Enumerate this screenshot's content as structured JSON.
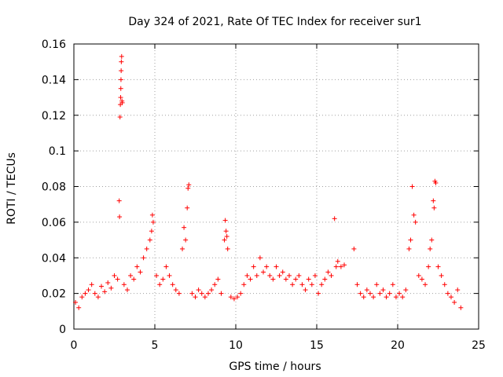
{
  "chart_data": {
    "type": "scatter",
    "title": "Day 324 of 2021, Rate Of TEC Index for receiver sur1",
    "xlabel": "GPS time / hours",
    "ylabel": "ROTI / TECUs",
    "xlim": [
      0,
      25
    ],
    "ylim": [
      0,
      0.16
    ],
    "xticks": [
      "0",
      "5",
      "10",
      "15",
      "20",
      "25"
    ],
    "yticks": [
      "0",
      "0.02",
      "0.04",
      "0.06",
      "0.08",
      "0.1",
      "0.12",
      "0.14",
      "0.16"
    ],
    "grid": true,
    "marker": "+",
    "marker_color": "#ff0000",
    "series": [
      {
        "values_note_free": true,
        "x": [
          0.1,
          0.3,
          0.5,
          0.7,
          0.9,
          1.1,
          1.3,
          1.5,
          1.7,
          1.9,
          2.1,
          2.3,
          2.5,
          2.7,
          2.85,
          2.87,
          2.89,
          2.9,
          2.91,
          2.92,
          2.93,
          2.95,
          2.97,
          2.99,
          2.8,
          2.82,
          3.1,
          3.3,
          3.5,
          3.7,
          3.9,
          4.1,
          4.3,
          4.5,
          4.7,
          4.8,
          4.85,
          4.9,
          5.1,
          5.3,
          5.5,
          5.7,
          5.9,
          6.1,
          6.3,
          6.5,
          6.7,
          6.8,
          6.9,
          7.0,
          7.05,
          7.1,
          7.3,
          7.5,
          7.7,
          7.9,
          8.1,
          8.3,
          8.5,
          8.7,
          8.9,
          9.1,
          9.3,
          9.35,
          9.4,
          9.45,
          9.5,
          9.7,
          9.9,
          10.1,
          10.3,
          10.5,
          10.7,
          10.9,
          11.1,
          11.3,
          11.5,
          11.7,
          11.9,
          12.1,
          12.3,
          12.5,
          12.7,
          12.9,
          13.1,
          13.3,
          13.5,
          13.7,
          13.9,
          14.1,
          14.3,
          14.5,
          14.7,
          14.9,
          15.1,
          15.3,
          15.5,
          15.7,
          15.9,
          16.1,
          16.2,
          16.3,
          16.5,
          16.7,
          17.3,
          17.5,
          17.7,
          17.9,
          18.1,
          18.3,
          18.5,
          18.7,
          18.9,
          19.1,
          19.3,
          19.5,
          19.7,
          19.9,
          20.1,
          20.3,
          20.5,
          20.7,
          20.8,
          20.9,
          21.0,
          21.1,
          21.3,
          21.5,
          21.7,
          21.9,
          22.0,
          22.1,
          22.2,
          22.25,
          22.3,
          22.35,
          22.5,
          22.7,
          22.9,
          23.1,
          23.3,
          23.5,
          23.7,
          23.9
        ],
        "y": [
          0.015,
          0.012,
          0.018,
          0.02,
          0.022,
          0.025,
          0.02,
          0.018,
          0.024,
          0.021,
          0.026,
          0.023,
          0.03,
          0.028,
          0.119,
          0.126,
          0.13,
          0.135,
          0.14,
          0.145,
          0.15,
          0.153,
          0.128,
          0.127,
          0.072,
          0.063,
          0.025,
          0.022,
          0.03,
          0.028,
          0.035,
          0.032,
          0.04,
          0.045,
          0.05,
          0.055,
          0.064,
          0.06,
          0.03,
          0.025,
          0.028,
          0.035,
          0.03,
          0.025,
          0.022,
          0.02,
          0.045,
          0.057,
          0.05,
          0.068,
          0.079,
          0.081,
          0.02,
          0.018,
          0.022,
          0.02,
          0.018,
          0.02,
          0.022,
          0.025,
          0.028,
          0.02,
          0.05,
          0.061,
          0.055,
          0.052,
          0.045,
          0.018,
          0.017,
          0.018,
          0.02,
          0.025,
          0.03,
          0.028,
          0.035,
          0.03,
          0.04,
          0.032,
          0.035,
          0.03,
          0.028,
          0.035,
          0.03,
          0.032,
          0.028,
          0.03,
          0.025,
          0.028,
          0.03,
          0.025,
          0.022,
          0.028,
          0.025,
          0.03,
          0.02,
          0.025,
          0.028,
          0.032,
          0.03,
          0.062,
          0.035,
          0.038,
          0.035,
          0.036,
          0.045,
          0.025,
          0.02,
          0.018,
          0.022,
          0.02,
          0.018,
          0.025,
          0.02,
          0.022,
          0.018,
          0.02,
          0.025,
          0.018,
          0.02,
          0.018,
          0.022,
          0.045,
          0.05,
          0.08,
          0.064,
          0.06,
          0.03,
          0.028,
          0.025,
          0.035,
          0.045,
          0.05,
          0.072,
          0.068,
          0.083,
          0.082,
          0.035,
          0.03,
          0.025,
          0.02,
          0.018,
          0.015,
          0.022,
          0.012
        ]
      }
    ]
  }
}
